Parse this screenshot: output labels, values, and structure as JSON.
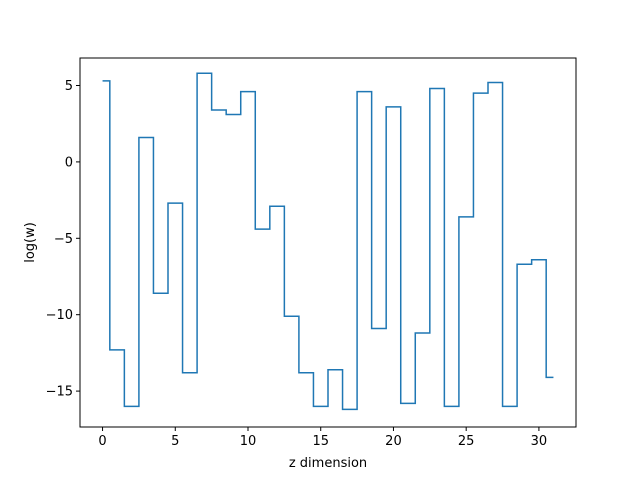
{
  "chart_data": {
    "type": "line",
    "drawstyle": "steps-mid",
    "title": "",
    "xlabel": "z dimension",
    "ylabel": "log(w)",
    "xlim": [
      -1.55,
      32.55
    ],
    "ylim": [
      -17.35,
      6.8
    ],
    "xticks": [
      0,
      5,
      10,
      15,
      20,
      25,
      30
    ],
    "xtick_labels": [
      "0",
      "5",
      "10",
      "15",
      "20",
      "25",
      "30"
    ],
    "yticks": [
      -15,
      -10,
      -5,
      0,
      5
    ],
    "ytick_labels": [
      "−15",
      "−10",
      "−5",
      "0",
      "5"
    ],
    "grid": false,
    "line_color": "#1f77b4",
    "series": [
      {
        "x": [
          0,
          1,
          2,
          3,
          4,
          5,
          6,
          7,
          8,
          9,
          10,
          11,
          12,
          13,
          14,
          15,
          16,
          17,
          18,
          19,
          20,
          21,
          22,
          23,
          24,
          25,
          26,
          27,
          28,
          29,
          30,
          31
        ],
        "values": [
          5.3,
          -12.3,
          -16.0,
          1.6,
          -8.6,
          -2.7,
          -13.8,
          5.8,
          3.4,
          3.1,
          4.6,
          -4.4,
          -2.9,
          -10.1,
          -13.8,
          -16.0,
          -13.6,
          -16.2,
          4.6,
          -10.9,
          3.6,
          -15.8,
          -11.2,
          4.8,
          -16.0,
          -3.6,
          4.5,
          5.2,
          -16.0,
          -6.7,
          -6.4,
          -14.1
        ]
      }
    ]
  }
}
